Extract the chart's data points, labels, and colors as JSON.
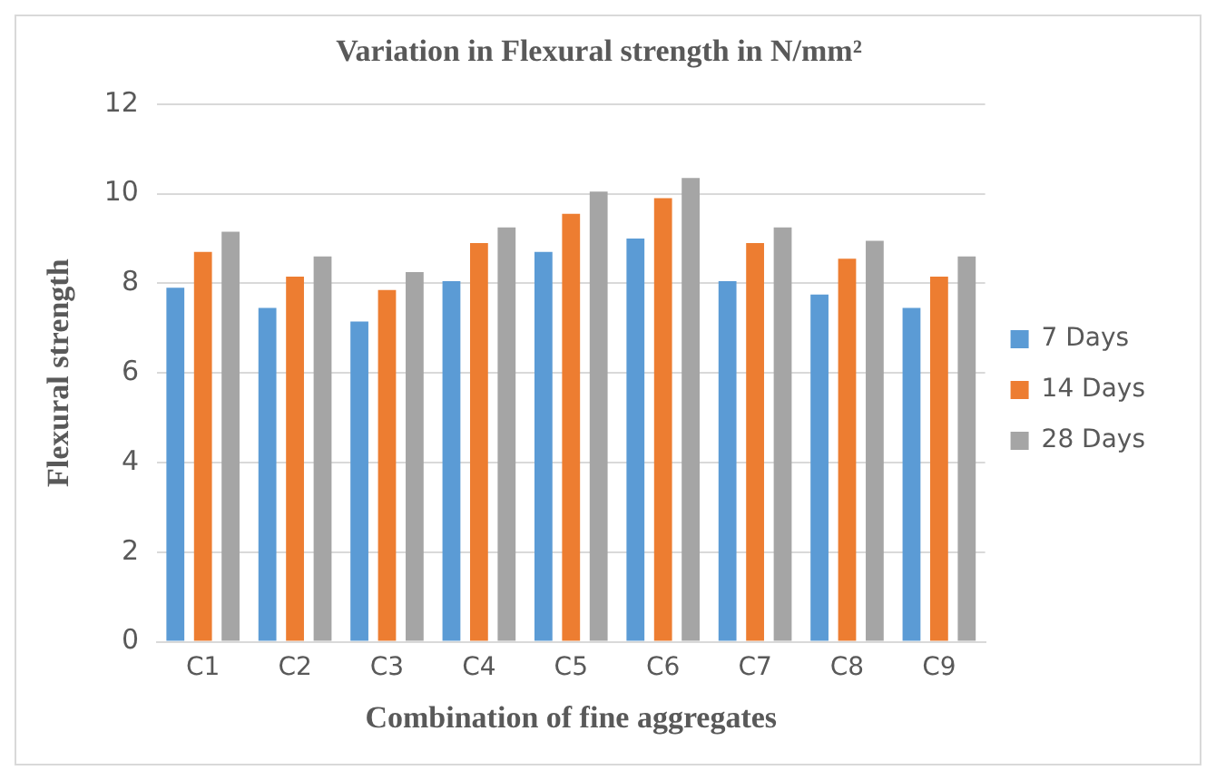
{
  "chart_data": {
    "type": "bar",
    "title": "Variation in Flexural strength in N/mm²",
    "xlabel": "Combination of fine aggregates",
    "ylabel": "Flexural strength",
    "categories": [
      "C1",
      "C2",
      "C3",
      "C4",
      "C5",
      "C6",
      "C7",
      "C8",
      "C9"
    ],
    "series": [
      {
        "name": "7 Days",
        "color": "#5b9bd5",
        "values": [
          7.9,
          7.45,
          7.15,
          8.05,
          8.7,
          9.0,
          8.05,
          7.75,
          7.45
        ]
      },
      {
        "name": "14 Days",
        "color": "#ed7d31",
        "values": [
          8.7,
          8.15,
          7.85,
          8.9,
          9.55,
          9.9,
          8.9,
          8.55,
          8.15
        ]
      },
      {
        "name": "28 Days",
        "color": "#a5a5a5",
        "values": [
          9.15,
          8.6,
          8.25,
          9.25,
          10.05,
          10.35,
          9.25,
          8.95,
          8.6
        ]
      }
    ],
    "ylim": [
      0,
      12
    ],
    "yticks": [
      0,
      2,
      4,
      6,
      8,
      10,
      12
    ],
    "grid": "y",
    "legend": "right"
  }
}
